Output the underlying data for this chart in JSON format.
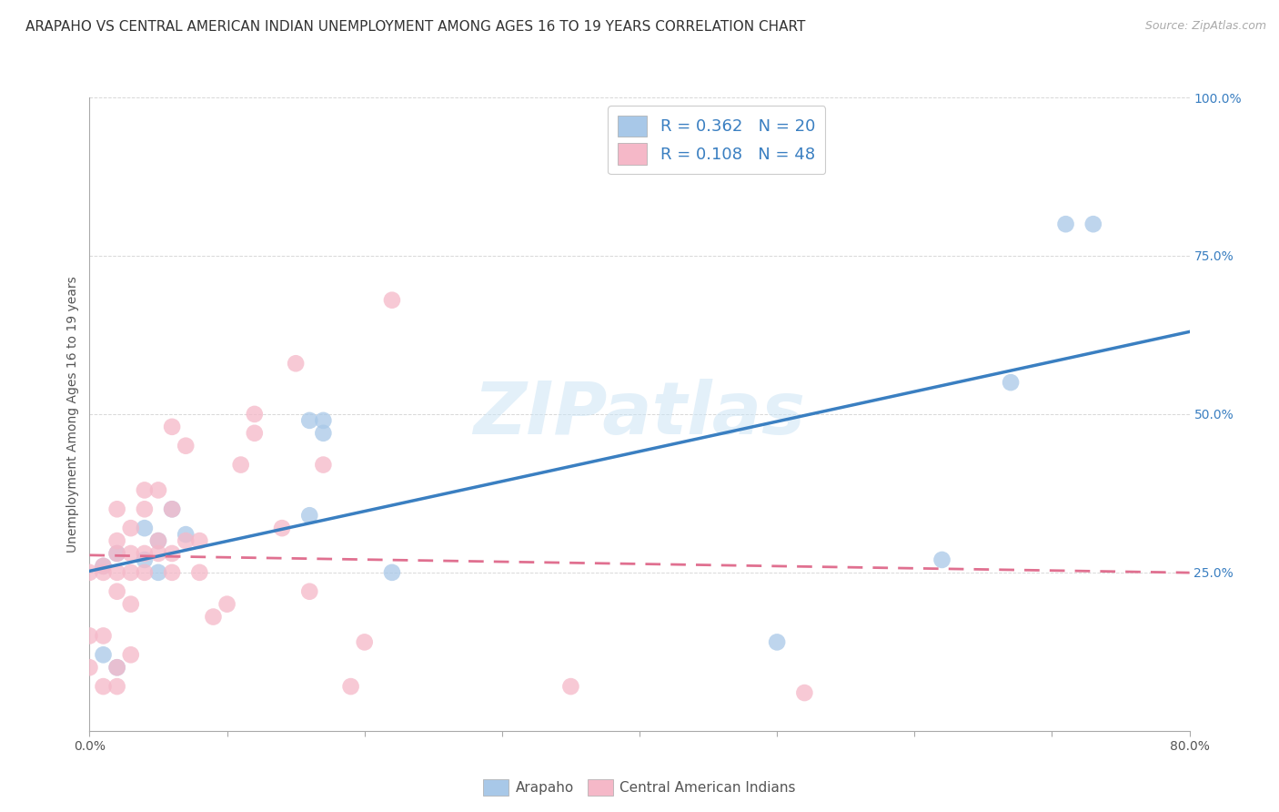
{
  "title": "ARAPAHO VS CENTRAL AMERICAN INDIAN UNEMPLOYMENT AMONG AGES 16 TO 19 YEARS CORRELATION CHART",
  "source": "Source: ZipAtlas.com",
  "ylabel": "Unemployment Among Ages 16 to 19 years",
  "xlim": [
    0.0,
    0.8
  ],
  "ylim": [
    0.0,
    1.0
  ],
  "xticks": [
    0.0,
    0.1,
    0.2,
    0.3,
    0.4,
    0.5,
    0.6,
    0.7,
    0.8
  ],
  "xticklabels": [
    "0.0%",
    "",
    "",
    "",
    "",
    "",
    "",
    "",
    "80.0%"
  ],
  "yticks": [
    0.0,
    0.25,
    0.5,
    0.75,
    1.0
  ],
  "yticklabels": [
    "",
    "25.0%",
    "50.0%",
    "75.0%",
    "100.0%"
  ],
  "arapaho_color": "#a8c8e8",
  "central_color": "#f5b8c8",
  "arapaho_line_color": "#3a7fc1",
  "central_line_color": "#e07090",
  "arapaho_R": 0.362,
  "arapaho_N": 20,
  "central_R": 0.108,
  "central_N": 48,
  "legend_label_blue": "Arapaho",
  "legend_label_pink": "Central American Indians",
  "watermark": "ZIPatlas",
  "arapaho_x": [
    0.01,
    0.01,
    0.02,
    0.02,
    0.04,
    0.04,
    0.05,
    0.05,
    0.06,
    0.07,
    0.16,
    0.16,
    0.17,
    0.17,
    0.22,
    0.5,
    0.62,
    0.67,
    0.71,
    0.73
  ],
  "arapaho_y": [
    0.26,
    0.12,
    0.28,
    0.1,
    0.32,
    0.27,
    0.25,
    0.3,
    0.35,
    0.31,
    0.34,
    0.49,
    0.47,
    0.49,
    0.25,
    0.14,
    0.27,
    0.55,
    0.8,
    0.8
  ],
  "central_x": [
    0.0,
    0.0,
    0.0,
    0.01,
    0.01,
    0.01,
    0.01,
    0.02,
    0.02,
    0.02,
    0.02,
    0.02,
    0.02,
    0.02,
    0.03,
    0.03,
    0.03,
    0.03,
    0.03,
    0.04,
    0.04,
    0.04,
    0.04,
    0.05,
    0.05,
    0.05,
    0.06,
    0.06,
    0.06,
    0.06,
    0.07,
    0.07,
    0.08,
    0.08,
    0.09,
    0.1,
    0.11,
    0.12,
    0.12,
    0.14,
    0.15,
    0.16,
    0.17,
    0.19,
    0.2,
    0.22,
    0.35,
    0.52
  ],
  "central_y": [
    0.1,
    0.15,
    0.25,
    0.07,
    0.15,
    0.25,
    0.26,
    0.07,
    0.1,
    0.22,
    0.25,
    0.28,
    0.3,
    0.35,
    0.12,
    0.2,
    0.25,
    0.28,
    0.32,
    0.25,
    0.28,
    0.35,
    0.38,
    0.28,
    0.3,
    0.38,
    0.25,
    0.28,
    0.35,
    0.48,
    0.3,
    0.45,
    0.25,
    0.3,
    0.18,
    0.2,
    0.42,
    0.47,
    0.5,
    0.32,
    0.58,
    0.22,
    0.42,
    0.07,
    0.14,
    0.68,
    0.07,
    0.06
  ],
  "title_fontsize": 11,
  "axis_label_fontsize": 10,
  "tick_fontsize": 10,
  "legend_fontsize": 13,
  "background_color": "#ffffff",
  "grid_color": "#d8d8d8"
}
